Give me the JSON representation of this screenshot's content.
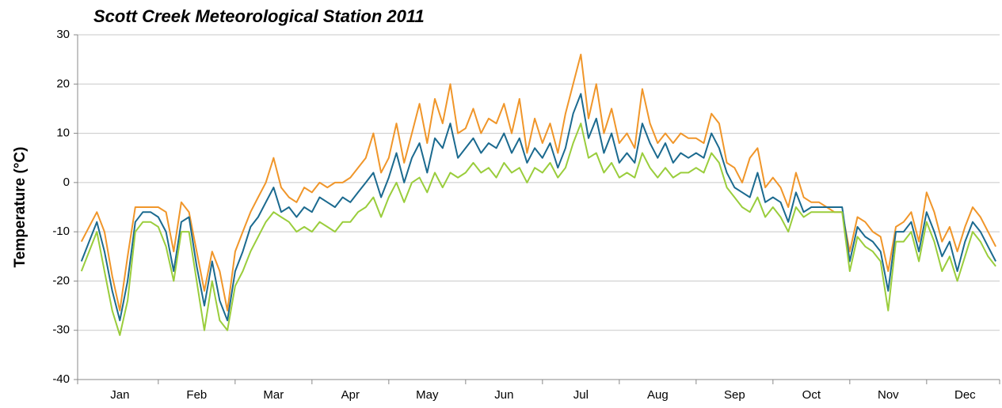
{
  "chart_data": {
    "type": "line",
    "title": "Scott Creek Meteorological Station 2011",
    "y_label": "Temperature (°C)",
    "categories": [
      null,
      null,
      null,
      null,
      null,
      "Jan",
      null,
      null,
      null,
      null,
      null,
      null,
      null,
      null,
      null,
      "Feb",
      null,
      null,
      null,
      null,
      null,
      null,
      null,
      null,
      null,
      "Mar",
      null,
      null,
      null,
      null,
      null,
      null,
      null,
      null,
      null,
      "Apr",
      null,
      null,
      null,
      null,
      null,
      null,
      null,
      null,
      null,
      "May",
      null,
      null,
      null,
      null,
      null,
      null,
      null,
      null,
      null,
      "Jun",
      null,
      null,
      null,
      null,
      null,
      null,
      null,
      null,
      null,
      "Jul",
      null,
      null,
      null,
      null,
      null,
      null,
      null,
      null,
      null,
      "Aug",
      null,
      null,
      null,
      null,
      null,
      null,
      null,
      null,
      null,
      "Sep",
      null,
      null,
      null,
      null,
      null,
      null,
      null,
      null,
      null,
      "Oct",
      null,
      null,
      null,
      null,
      null,
      null,
      null,
      null,
      null,
      "Nov",
      null,
      null,
      null,
      null,
      null,
      null,
      null,
      null,
      null,
      "Dec",
      null,
      null,
      null,
      null
    ],
    "series": [
      {
        "color": "#f0962a",
        "values": [
          -12,
          -9,
          -6,
          -10,
          -19,
          -26,
          -15,
          -5,
          -5,
          -5,
          -5,
          -6,
          -14,
          -4,
          -6,
          -14,
          -22,
          -14,
          -18,
          -26,
          -14,
          -10,
          -6,
          -3,
          0,
          5,
          -1,
          -3,
          -4,
          -1,
          -2,
          0,
          -1,
          0,
          0,
          1,
          3,
          5,
          10,
          2,
          5,
          12,
          4,
          10,
          16,
          8,
          17,
          12,
          20,
          10,
          11,
          15,
          10,
          13,
          12,
          16,
          10,
          17,
          6,
          13,
          8,
          12,
          6,
          14,
          20,
          26,
          13,
          20,
          10,
          15,
          8,
          10,
          7,
          19,
          12,
          8,
          10,
          8,
          10,
          9,
          9,
          8,
          14,
          12,
          4,
          3,
          0,
          5,
          7,
          -1,
          1,
          -1,
          -5,
          2,
          -3,
          -4,
          -4,
          -5,
          -6,
          -6,
          -14,
          -7,
          -8,
          -10,
          -11,
          -18,
          -9,
          -8,
          -6,
          -12,
          -2,
          -6,
          -12,
          -9,
          -14,
          -9,
          -5,
          -7,
          -10,
          -13
        ]
      },
      {
        "color": "#1b6a8f",
        "values": [
          -16,
          -12,
          -8,
          -14,
          -22,
          -28,
          -20,
          -8,
          -6,
          -6,
          -7,
          -10,
          -18,
          -8,
          -7,
          -17,
          -25,
          -16,
          -24,
          -28,
          -18,
          -14,
          -9,
          -7,
          -4,
          -1,
          -6,
          -5,
          -7,
          -5,
          -6,
          -3,
          -4,
          -5,
          -3,
          -4,
          -2,
          0,
          2,
          -3,
          1,
          6,
          0,
          5,
          8,
          2,
          9,
          7,
          12,
          5,
          7,
          9,
          6,
          8,
          7,
          10,
          6,
          9,
          4,
          7,
          5,
          8,
          3,
          7,
          14,
          18,
          9,
          13,
          6,
          10,
          4,
          6,
          4,
          12,
          8,
          5,
          8,
          4,
          6,
          5,
          6,
          5,
          10,
          7,
          2,
          -1,
          -2,
          -3,
          2,
          -4,
          -3,
          -4,
          -8,
          -2,
          -6,
          -5,
          -5,
          -5,
          -5,
          -5,
          -16,
          -9,
          -11,
          -12,
          -14,
          -22,
          -10,
          -10,
          -8,
          -14,
          -6,
          -10,
          -15,
          -12,
          -18,
          -12,
          -8,
          -10,
          -13,
          -16
        ]
      },
      {
        "color": "#9acd3c",
        "values": [
          -18,
          -14,
          -10,
          -18,
          -26,
          -31,
          -24,
          -10,
          -8,
          -8,
          -9,
          -13,
          -20,
          -10,
          -10,
          -20,
          -30,
          -20,
          -28,
          -30,
          -21,
          -18,
          -14,
          -11,
          -8,
          -6,
          -7,
          -8,
          -10,
          -9,
          -10,
          -8,
          -9,
          -10,
          -8,
          -8,
          -6,
          -5,
          -3,
          -7,
          -3,
          0,
          -4,
          0,
          1,
          -2,
          2,
          -1,
          2,
          1,
          2,
          4,
          2,
          3,
          1,
          4,
          2,
          3,
          0,
          3,
          2,
          4,
          1,
          3,
          8,
          12,
          5,
          6,
          2,
          4,
          1,
          2,
          1,
          6,
          3,
          1,
          3,
          1,
          2,
          2,
          3,
          2,
          6,
          4,
          -1,
          -3,
          -5,
          -6,
          -3,
          -7,
          -5,
          -7,
          -10,
          -5,
          -7,
          -6,
          -6,
          -6,
          -6,
          -6,
          -18,
          -11,
          -13,
          -14,
          -16,
          -26,
          -12,
          -12,
          -10,
          -16,
          -8,
          -12,
          -18,
          -15,
          -20,
          -15,
          -10,
          -12,
          -15,
          -17
        ]
      }
    ],
    "ylim": [
      -40,
      30
    ],
    "yticks": [
      -40,
      -30,
      -20,
      -10,
      0,
      10,
      20,
      30
    ],
    "grid": true
  }
}
